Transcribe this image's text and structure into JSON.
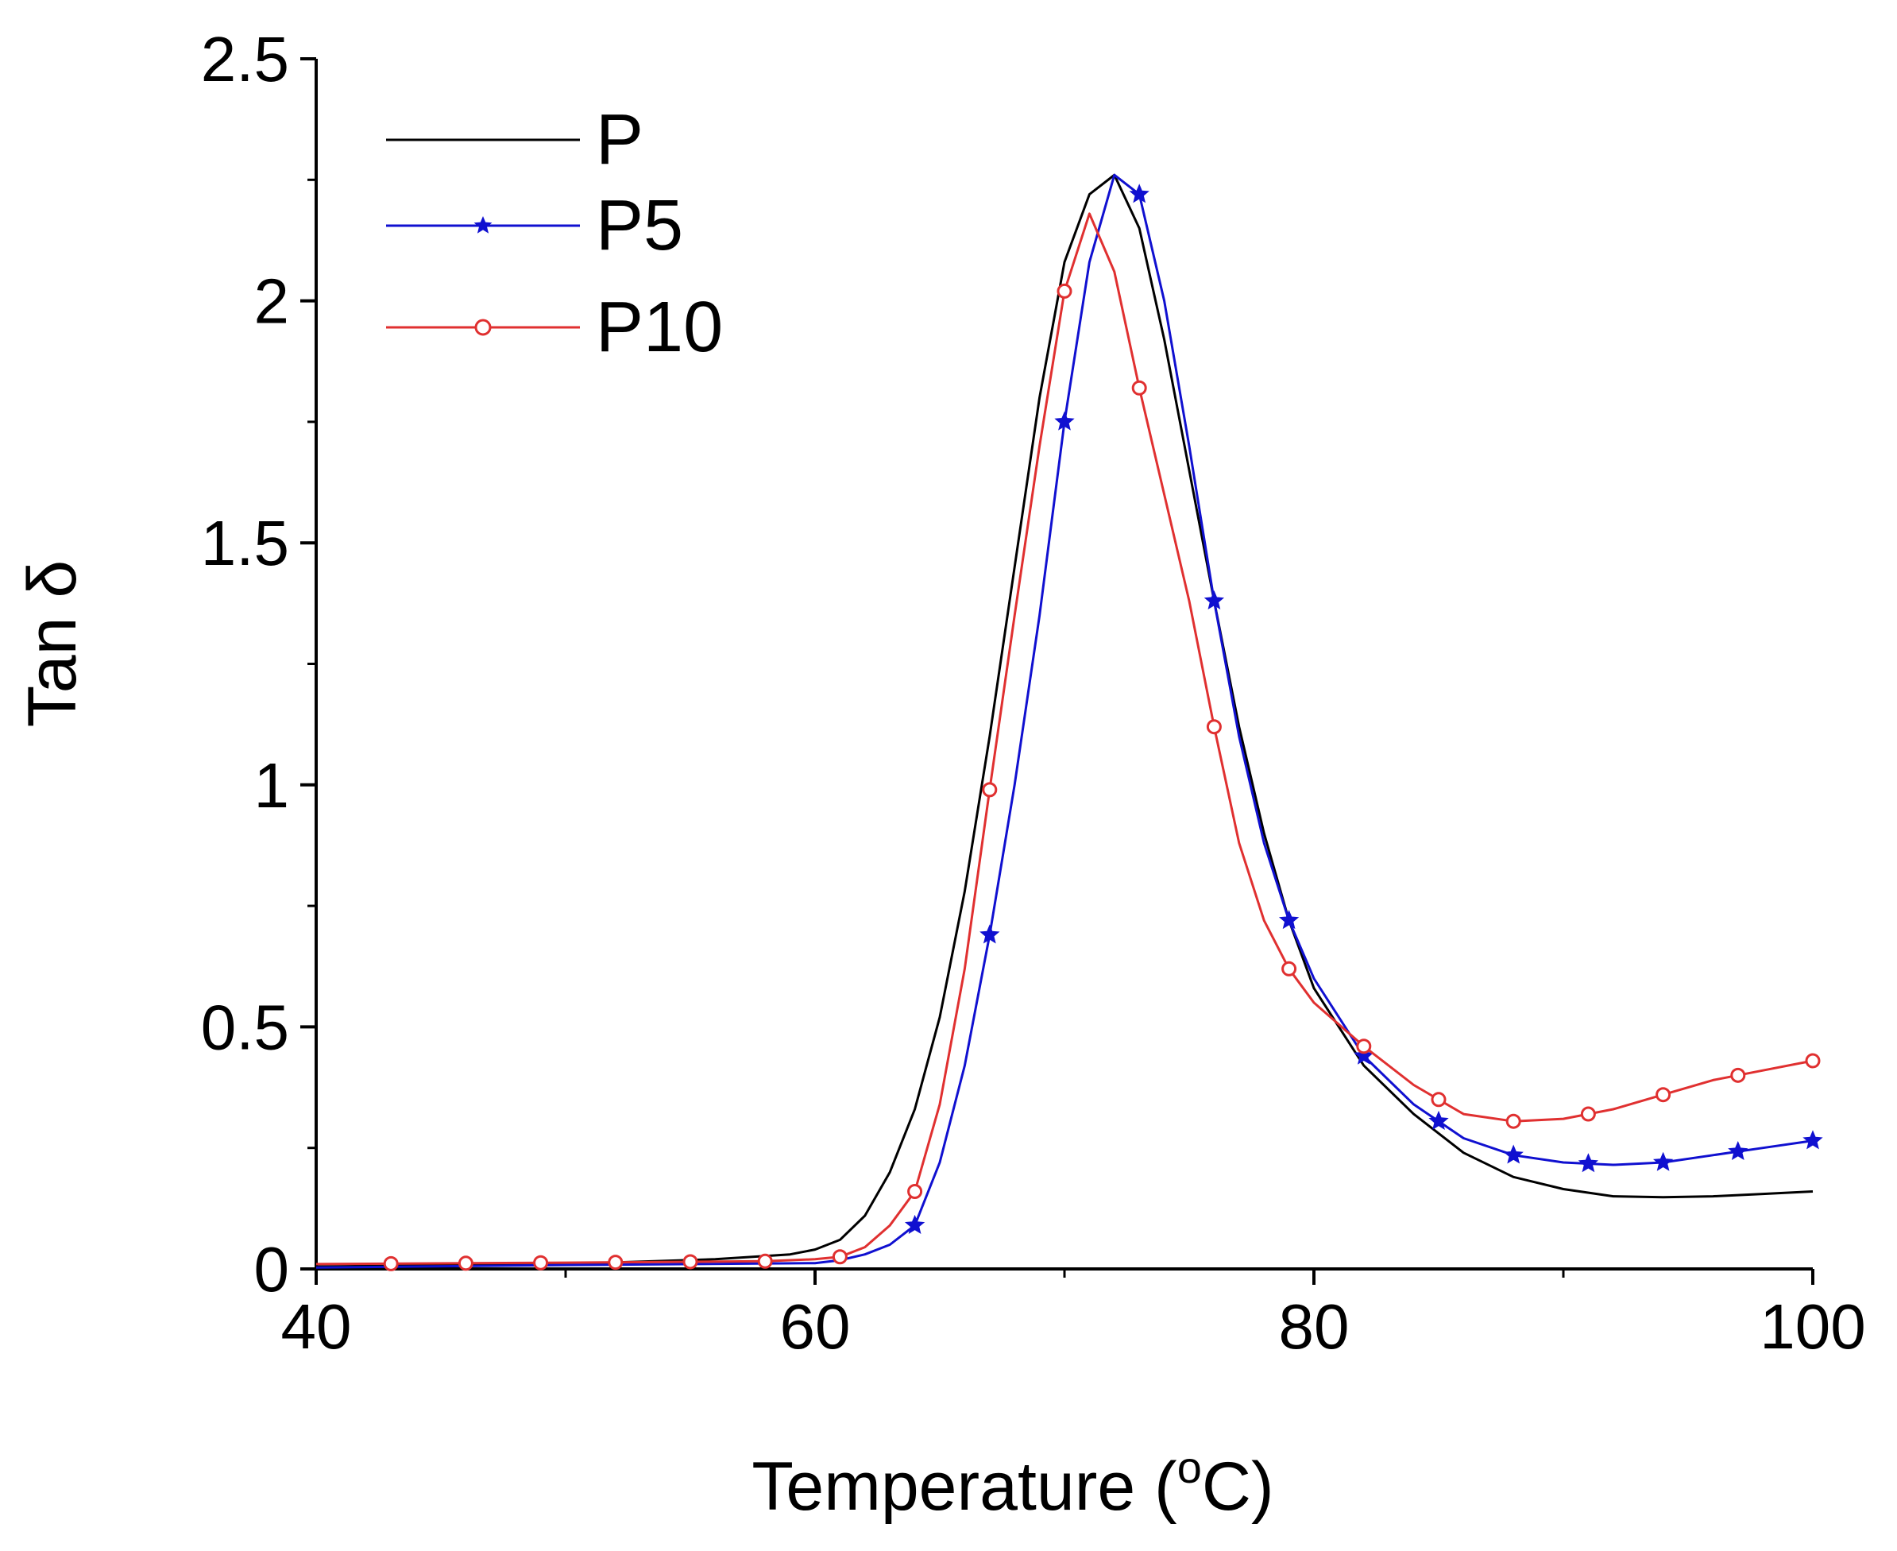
{
  "chart_data": {
    "type": "line",
    "title": "",
    "xlabel": "Temperature (",
    "xlabel_sup": "o",
    "xlabel_end": "C)",
    "ylabel": "Tan δ",
    "xlim": [
      40,
      100
    ],
    "ylim": [
      0,
      2.5
    ],
    "x_ticks": [
      40,
      60,
      80,
      100
    ],
    "x_tick_labels": [
      "40",
      "60",
      "80",
      "100"
    ],
    "y_ticks": [
      0,
      0.5,
      1,
      1.5,
      2,
      2.5
    ],
    "y_tick_labels": [
      "0",
      "0.5",
      "1",
      "1.5",
      "2",
      "2.5"
    ],
    "legend_position": "top-left",
    "series": [
      {
        "name": "P",
        "color": "#000000",
        "marker": "none",
        "x": [
          40,
          50,
          56,
          59,
          60,
          61,
          62,
          63,
          64,
          65,
          66,
          67,
          68,
          69,
          70,
          71,
          72,
          73,
          74,
          75,
          76,
          77,
          78,
          79,
          80,
          82,
          84,
          86,
          88,
          90,
          92,
          94,
          96,
          98,
          100
        ],
        "y": [
          0.005,
          0.01,
          0.02,
          0.03,
          0.04,
          0.06,
          0.11,
          0.2,
          0.33,
          0.52,
          0.78,
          1.1,
          1.45,
          1.8,
          2.08,
          2.22,
          2.26,
          2.15,
          1.92,
          1.65,
          1.38,
          1.12,
          0.9,
          0.72,
          0.58,
          0.42,
          0.32,
          0.24,
          0.19,
          0.165,
          0.15,
          0.148,
          0.15,
          0.155,
          0.16
        ]
      },
      {
        "name": "P5",
        "color": "#1010d0",
        "marker": "star",
        "x": [
          40,
          50,
          60,
          61,
          62,
          63,
          64,
          65,
          66,
          67,
          68,
          69,
          70,
          71,
          72,
          73,
          74,
          75,
          76,
          77,
          78,
          79,
          80,
          82,
          84,
          86,
          88,
          90,
          92,
          94,
          96,
          98,
          100
        ],
        "y": [
          0.003,
          0.008,
          0.012,
          0.018,
          0.03,
          0.05,
          0.09,
          0.22,
          0.42,
          0.69,
          1.0,
          1.35,
          1.75,
          2.08,
          2.26,
          2.22,
          2.0,
          1.7,
          1.38,
          1.1,
          0.88,
          0.72,
          0.6,
          0.44,
          0.34,
          0.27,
          0.235,
          0.22,
          0.215,
          0.22,
          0.235,
          0.25,
          0.265
        ]
      },
      {
        "name": "P10",
        "color": "#e03030",
        "marker": "circle",
        "x": [
          40,
          50,
          58,
          60,
          61,
          62,
          63,
          64,
          65,
          66,
          67,
          68,
          69,
          70,
          71,
          72,
          73,
          74,
          75,
          76,
          77,
          78,
          79,
          80,
          82,
          84,
          86,
          88,
          90,
          92,
          94,
          96,
          98,
          100
        ],
        "y": [
          0.01,
          0.013,
          0.016,
          0.02,
          0.025,
          0.045,
          0.09,
          0.16,
          0.34,
          0.62,
          0.99,
          1.35,
          1.7,
          2.02,
          2.18,
          2.06,
          1.82,
          1.6,
          1.38,
          1.12,
          0.88,
          0.72,
          0.62,
          0.55,
          0.46,
          0.38,
          0.32,
          0.305,
          0.31,
          0.33,
          0.36,
          0.39,
          0.41,
          0.43
        ]
      }
    ]
  }
}
